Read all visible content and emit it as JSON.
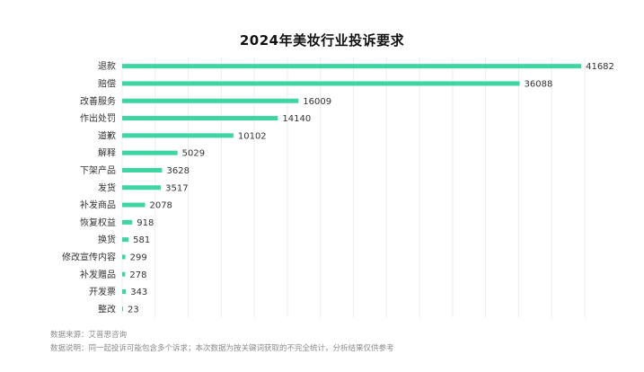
{
  "chart_data": {
    "type": "bar",
    "orientation": "horizontal",
    "title": "2024年美妆行业投诉要求",
    "categories": [
      "退款",
      "赔偿",
      "改善服务",
      "作出处罚",
      "道歉",
      "解释",
      "下架产品",
      "发货",
      "补发商品",
      "恢复权益",
      "换货",
      "修改宣传内容",
      "补发赠品",
      "开发票",
      "整改"
    ],
    "values": [
      41682,
      36088,
      16009,
      14140,
      10102,
      5029,
      3628,
      3517,
      2078,
      918,
      581,
      299,
      278,
      343,
      23
    ],
    "xlim": [
      0,
      42000
    ],
    "grid": true,
    "bar_color": "#3dd6a3"
  },
  "footer": {
    "source": "数据来源：艾普思咨询",
    "note": "数据说明：同一起投诉可能包含多个诉求；本次数据为按关键词获取的不完全统计，分析结果仅供参考"
  }
}
